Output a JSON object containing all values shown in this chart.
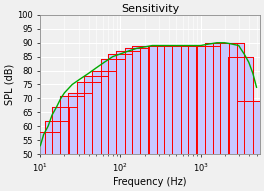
{
  "title": "Sensitivity",
  "xlabel": "Frequency (Hz)",
  "ylabel": "SPL (dB)",
  "xlim": [
    10,
    5500
  ],
  "ylim": [
    50,
    100
  ],
  "background_color": "#f0f0f0",
  "grid_color": "#ffffff",
  "octave_band_centers": [
    12.5,
    16,
    20,
    25,
    31.5,
    40,
    50,
    63,
    80,
    100,
    125,
    160,
    200,
    250,
    315,
    400,
    500,
    630,
    800,
    1000,
    1250,
    1600,
    2000,
    2500,
    3150,
    4000
  ],
  "octave_band_heights": [
    58,
    62,
    67,
    71,
    72,
    76,
    78,
    80,
    84,
    86,
    87,
    88,
    89,
    89,
    89,
    89,
    89,
    89,
    89,
    89,
    89,
    90,
    90,
    90,
    85,
    69
  ],
  "bar_fill_color": "#c8c8ff",
  "bar_edge_color": "#4444cc",
  "red_color": "#ff0000",
  "green_color": "#00aa00",
  "green_curve_x": [
    10,
    11,
    12.5,
    14,
    16,
    18,
    20,
    25,
    31.5,
    40,
    50,
    63,
    80,
    100,
    125,
    160,
    200,
    250,
    315,
    400,
    500,
    630,
    800,
    1000,
    1250,
    1600,
    2000,
    2200,
    2500,
    3000,
    3150,
    3500,
    4000,
    4500,
    5000
  ],
  "green_curve_y": [
    53,
    57,
    60,
    64,
    67,
    70,
    72,
    75,
    77,
    79,
    81,
    83,
    85,
    86,
    87,
    88,
    88.5,
    89,
    89,
    89,
    89,
    89,
    89,
    89,
    89.5,
    90,
    90,
    89.8,
    89.5,
    89,
    88,
    86,
    83,
    79,
    74
  ],
  "title_fontsize": 8,
  "axis_fontsize": 7,
  "tick_fontsize": 6
}
